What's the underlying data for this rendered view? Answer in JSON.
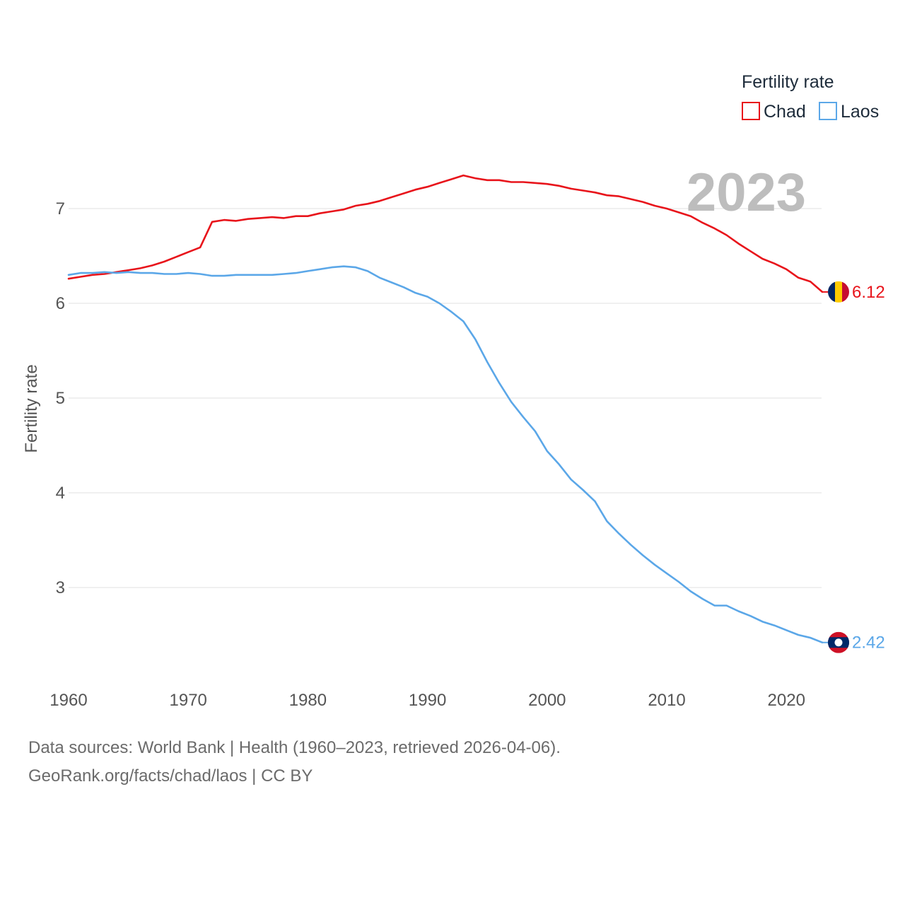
{
  "chart_data": {
    "type": "line",
    "ylabel": "Fertility rate",
    "xlabel": "",
    "year_label": "2023",
    "legend": {
      "title": "Fertility rate",
      "position": "top-right"
    },
    "ylim": [
      2.0,
      7.5
    ],
    "xlim": [
      1960,
      2023
    ],
    "yticks": [
      3,
      4,
      5,
      6,
      7
    ],
    "xticks": [
      1960,
      1970,
      1980,
      1990,
      2000,
      2010,
      2020
    ],
    "x": [
      1960,
      1961,
      1962,
      1963,
      1964,
      1965,
      1966,
      1967,
      1968,
      1969,
      1970,
      1971,
      1972,
      1973,
      1974,
      1975,
      1976,
      1977,
      1978,
      1979,
      1980,
      1981,
      1982,
      1983,
      1984,
      1985,
      1986,
      1987,
      1988,
      1989,
      1990,
      1991,
      1992,
      1993,
      1994,
      1995,
      1996,
      1997,
      1998,
      1999,
      2000,
      2001,
      2002,
      2003,
      2004,
      2005,
      2006,
      2007,
      2008,
      2009,
      2010,
      2011,
      2012,
      2013,
      2014,
      2015,
      2016,
      2017,
      2018,
      2019,
      2020,
      2021,
      2022,
      2023
    ],
    "series": [
      {
        "name": "Chad",
        "color": "#e8141b",
        "end_label": "6.12",
        "flag": "flag-chad",
        "values": [
          6.26,
          6.28,
          6.3,
          6.31,
          6.33,
          6.35,
          6.37,
          6.4,
          6.44,
          6.49,
          6.54,
          6.59,
          6.86,
          6.88,
          6.87,
          6.89,
          6.9,
          6.91,
          6.9,
          6.92,
          6.92,
          6.95,
          6.97,
          6.99,
          7.03,
          7.05,
          7.08,
          7.12,
          7.16,
          7.2,
          7.23,
          7.27,
          7.31,
          7.35,
          7.32,
          7.3,
          7.3,
          7.28,
          7.28,
          7.27,
          7.26,
          7.24,
          7.21,
          7.19,
          7.17,
          7.14,
          7.13,
          7.1,
          7.07,
          7.03,
          7.0,
          6.96,
          6.92,
          6.85,
          6.79,
          6.72,
          6.63,
          6.55,
          6.47,
          6.42,
          6.36,
          6.27,
          6.23,
          6.12
        ]
      },
      {
        "name": "Laos",
        "color": "#5ba7e8",
        "end_label": "2.42",
        "flag": "flag-laos",
        "values": [
          6.3,
          6.32,
          6.32,
          6.33,
          6.32,
          6.33,
          6.32,
          6.32,
          6.31,
          6.31,
          6.32,
          6.31,
          6.29,
          6.29,
          6.3,
          6.3,
          6.3,
          6.3,
          6.31,
          6.32,
          6.34,
          6.36,
          6.38,
          6.39,
          6.38,
          6.34,
          6.27,
          6.22,
          6.17,
          6.11,
          6.07,
          6.0,
          5.91,
          5.81,
          5.62,
          5.38,
          5.16,
          4.96,
          4.8,
          4.65,
          4.44,
          4.3,
          4.14,
          4.03,
          3.91,
          3.7,
          3.57,
          3.45,
          3.34,
          3.24,
          3.15,
          3.06,
          2.96,
          2.88,
          2.81,
          2.81,
          2.75,
          2.7,
          2.64,
          2.6,
          2.55,
          2.5,
          2.47,
          2.42
        ]
      }
    ]
  },
  "footer": {
    "sources": "Data sources: World Bank | Health (1960–2023, retrieved 2026-04-06).",
    "credit": "GeoRank.org/facts/chad/laos | CC BY"
  }
}
